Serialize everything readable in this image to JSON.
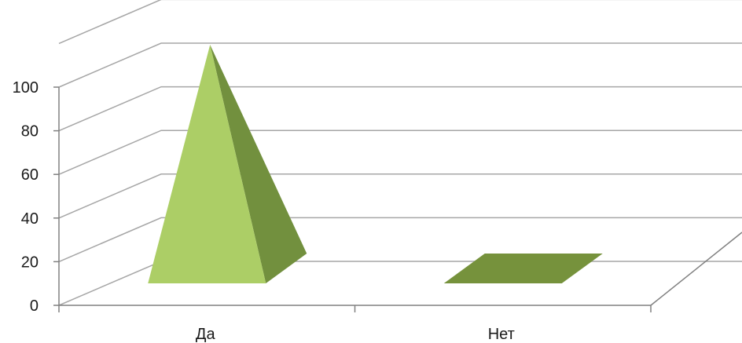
{
  "chart_data": {
    "type": "bar",
    "shape": "3d-pyramid",
    "categories": [
      "Да",
      "Нет"
    ],
    "values": [
      100,
      0
    ],
    "title": "",
    "xlabel": "",
    "ylabel": "",
    "ylim": [
      0,
      100
    ],
    "y_ticks": [
      "0",
      "20",
      "40",
      "60",
      "80",
      "100"
    ],
    "grid": true,
    "legend": "none",
    "colors": {
      "front": "#acce66",
      "side": "#72903e",
      "flat": "#76923c",
      "grid": "#a6a6a6",
      "axis": "#808080"
    }
  }
}
